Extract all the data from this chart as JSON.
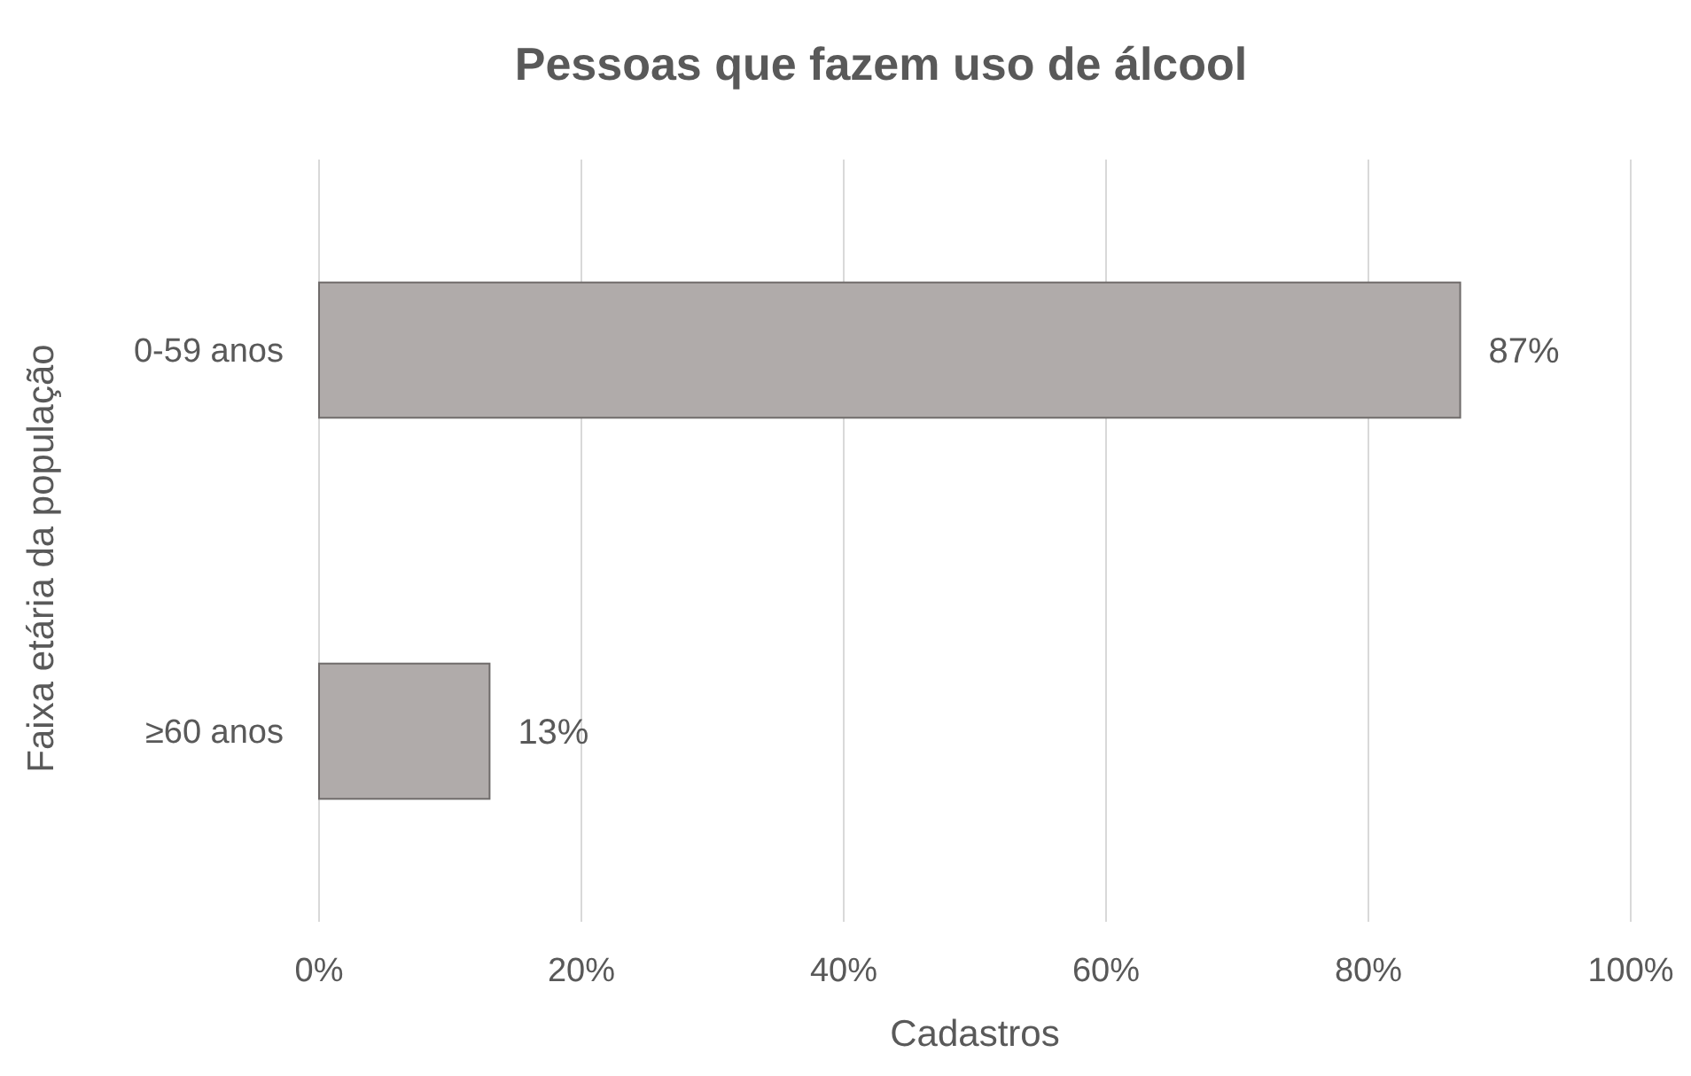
{
  "chart_data": {
    "type": "bar",
    "orientation": "horizontal",
    "title": "Pessoas que fazem uso de álcool",
    "xlabel": "Cadastros",
    "ylabel": "Faixa etária da população",
    "categories": [
      "0-59 anos",
      "≥60 anos"
    ],
    "values": [
      87,
      13
    ],
    "value_labels": [
      "87%",
      "13%"
    ],
    "color": "#b0abaa",
    "xlim": [
      0,
      100
    ],
    "xticks": [
      {
        "value": 0,
        "label": "0%"
      },
      {
        "value": 20,
        "label": "20%"
      },
      {
        "value": 40,
        "label": "40%"
      },
      {
        "value": 60,
        "label": "60%"
      },
      {
        "value": 80,
        "label": "80%"
      },
      {
        "value": 100,
        "label": "100%"
      }
    ],
    "grid": "x"
  }
}
